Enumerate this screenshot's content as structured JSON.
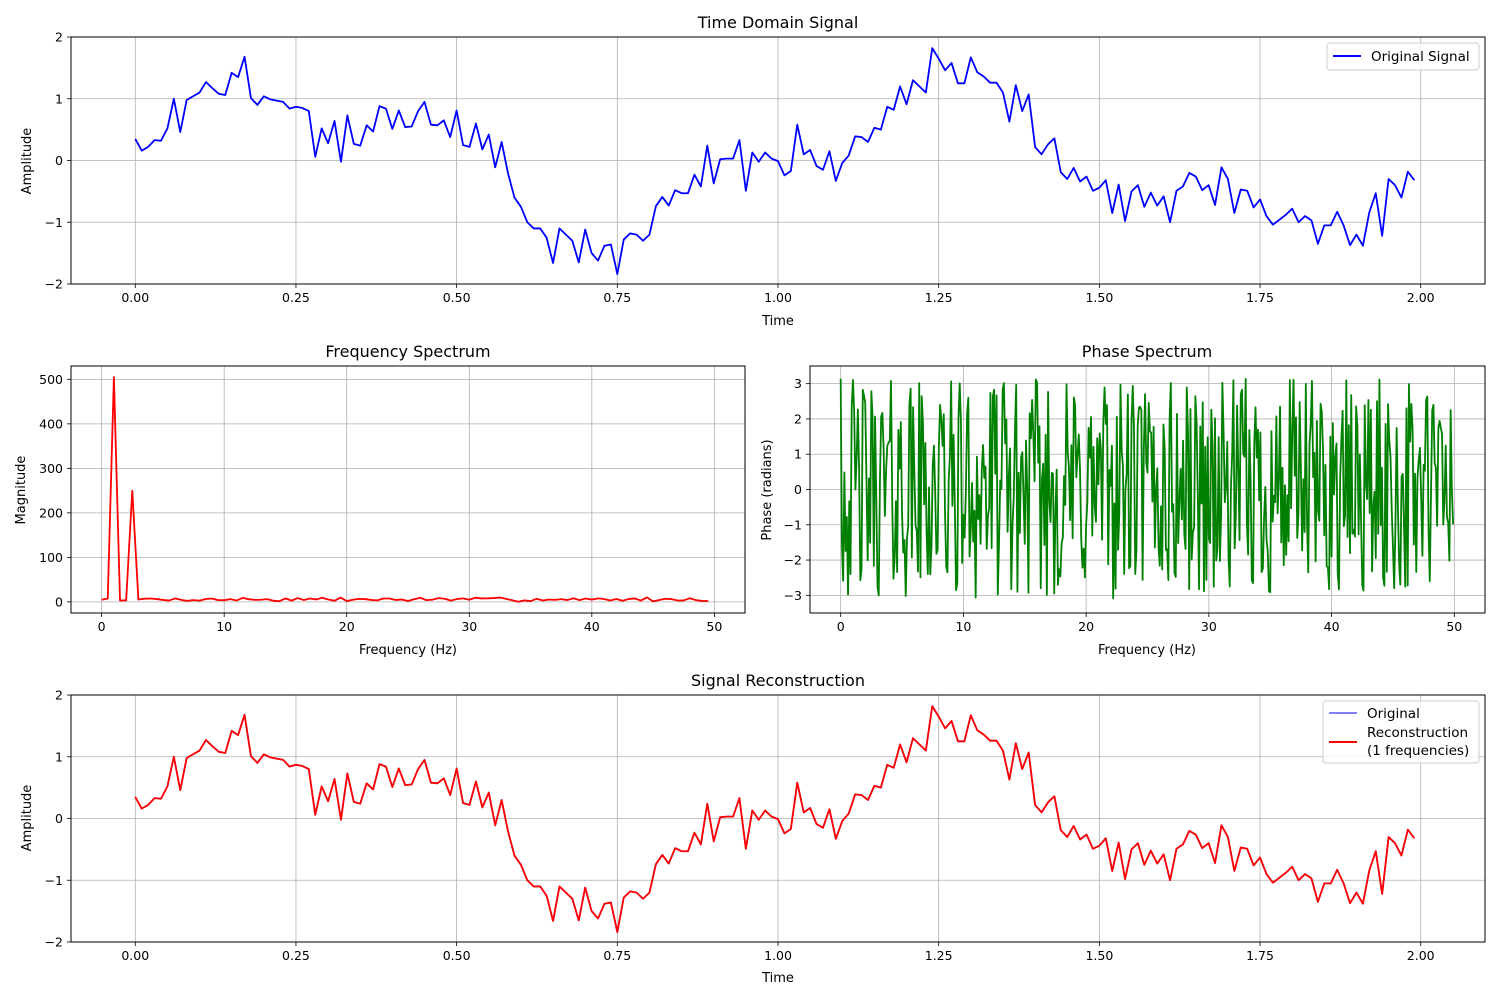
{
  "chart_data": [
    {
      "id": "time",
      "type": "line",
      "title": "Time Domain Signal",
      "xlabel": "Time",
      "ylabel": "Amplitude",
      "xlim": [
        -0.1,
        2.1
      ],
      "ylim": [
        -2.0,
        2.0
      ],
      "xticks": [
        0.0,
        0.25,
        0.5,
        0.75,
        1.0,
        1.25,
        1.5,
        1.75,
        2.0
      ],
      "xtick_labels": [
        "0.00",
        "0.25",
        "0.50",
        "0.75",
        "1.00",
        "1.25",
        "1.50",
        "1.75",
        "2.00"
      ],
      "yticks": [
        -2,
        -1,
        0,
        1,
        2
      ],
      "ytick_labels": [
        "−2",
        "−1",
        "0",
        "1",
        "2"
      ],
      "grid": true,
      "legend": {
        "position": "top-right",
        "entries": [
          {
            "label": "Original Signal",
            "color": "#0000ff"
          }
        ]
      },
      "series": [
        {
          "name": "Original Signal",
          "color": "#0000ff",
          "x_start": 0.0,
          "x_step": 0.01,
          "values": [
            0.35,
            0.16,
            0.22,
            0.33,
            0.32,
            0.52,
            1.0,
            0.46,
            0.98,
            1.04,
            1.1,
            1.27,
            1.17,
            1.08,
            1.06,
            1.42,
            1.35,
            1.68,
            1.01,
            0.9,
            1.04,
            0.99,
            0.97,
            0.95,
            0.84,
            0.87,
            0.85,
            0.8,
            0.06,
            0.52,
            0.28,
            0.64,
            -0.02,
            0.73,
            0.27,
            0.24,
            0.57,
            0.47,
            0.88,
            0.84,
            0.51,
            0.81,
            0.54,
            0.55,
            0.8,
            0.95,
            0.58,
            0.57,
            0.65,
            0.38,
            0.81,
            0.25,
            0.22,
            0.6,
            0.18,
            0.42,
            -0.11,
            0.3,
            -0.21,
            -0.6,
            -0.75,
            -1.0,
            -1.1,
            -1.1,
            -1.25,
            -1.66,
            -1.1,
            -1.2,
            -1.3,
            -1.65,
            -1.12,
            -1.5,
            -1.62,
            -1.38,
            -1.36,
            -1.84,
            -1.28,
            -1.18,
            -1.2,
            -1.3,
            -1.2,
            -0.74,
            -0.59,
            -0.73,
            -0.48,
            -0.53,
            -0.53,
            -0.23,
            -0.42,
            0.24,
            -0.37,
            0.02,
            0.03,
            0.03,
            0.33,
            -0.49,
            0.13,
            -0.02,
            0.13,
            0.03,
            -0.01,
            -0.24,
            -0.17,
            0.58,
            0.1,
            0.17,
            -0.09,
            -0.15,
            0.15,
            -0.33,
            -0.04,
            0.08,
            0.39,
            0.38,
            0.3,
            0.53,
            0.5,
            0.87,
            0.82,
            1.2,
            0.91,
            1.3,
            1.2,
            1.1,
            1.82,
            1.65,
            1.46,
            1.58,
            1.25,
            1.25,
            1.67,
            1.43,
            1.36,
            1.26,
            1.26,
            1.1,
            0.63,
            1.22,
            0.8,
            1.07,
            0.22,
            0.1,
            0.26,
            0.36,
            -0.19,
            -0.3,
            -0.12,
            -0.34,
            -0.26,
            -0.49,
            -0.44,
            -0.32,
            -0.85,
            -0.39,
            -0.98,
            -0.5,
            -0.4,
            -0.75,
            -0.52,
            -0.73,
            -0.58,
            -1.0,
            -0.49,
            -0.42,
            -0.2,
            -0.26,
            -0.48,
            -0.4,
            -0.72,
            -0.11,
            -0.3,
            -0.85,
            -0.47,
            -0.49,
            -0.76,
            -0.63,
            -0.9,
            -1.04,
            -0.96,
            -0.88,
            -0.78,
            -1.0,
            -0.9,
            -0.97,
            -1.35,
            -1.05,
            -1.05,
            -0.83,
            -1.05,
            -1.37,
            -1.2,
            -1.38,
            -0.84,
            -0.53,
            -1.22,
            -0.3,
            -0.4,
            -0.6,
            -0.18,
            -0.32
          ]
        }
      ]
    },
    {
      "id": "freq",
      "type": "line",
      "title": "Frequency Spectrum",
      "xlabel": "Frequency (Hz)",
      "ylabel": "Magnitude",
      "xlim": [
        -2.5,
        52.5
      ],
      "ylim": [
        -25,
        530
      ],
      "xticks": [
        0,
        10,
        20,
        30,
        40,
        50
      ],
      "xtick_labels": [
        "0",
        "10",
        "20",
        "30",
        "40",
        "50"
      ],
      "yticks": [
        0,
        100,
        200,
        300,
        400,
        500
      ],
      "ytick_labels": [
        "0",
        "100",
        "200",
        "300",
        "400",
        "500"
      ],
      "grid": true,
      "series": [
        {
          "name": "Magnitude",
          "color": "#ff0000",
          "x_start": 0.0,
          "x_step": 0.5,
          "noise_level": 5,
          "peaks": [
            {
              "x": 1.0,
              "y": 505
            },
            {
              "x": 2.5,
              "y": 250
            }
          ]
        }
      ]
    },
    {
      "id": "phase",
      "type": "line",
      "title": "Phase Spectrum",
      "xlabel": "Frequency (Hz)",
      "ylabel": "Phase (radians)",
      "xlim": [
        -2.5,
        52.5
      ],
      "ylim": [
        -3.5,
        3.5
      ],
      "xticks": [
        0,
        10,
        20,
        30,
        40,
        50
      ],
      "xtick_labels": [
        "0",
        "10",
        "20",
        "30",
        "40",
        "50"
      ],
      "yticks": [
        -3,
        -2,
        -1,
        0,
        1,
        2,
        3
      ],
      "ytick_labels": [
        "−3",
        "−2",
        "−1",
        "0",
        "1",
        "2",
        "3"
      ],
      "grid": true,
      "series": [
        {
          "name": "Phase",
          "color": "#008000",
          "x_start": 0.0,
          "x_step": 0.1,
          "range": [
            -3.14,
            3.14
          ],
          "first_value": 3.14
        }
      ]
    },
    {
      "id": "recon",
      "type": "line",
      "title": "Signal Reconstruction",
      "xlabel": "Time",
      "ylabel": "Amplitude",
      "xlim": [
        -0.1,
        2.1
      ],
      "ylim": [
        -2.0,
        2.0
      ],
      "xticks": [
        0.0,
        0.25,
        0.5,
        0.75,
        1.0,
        1.25,
        1.5,
        1.75,
        2.0
      ],
      "xtick_labels": [
        "0.00",
        "0.25",
        "0.50",
        "0.75",
        "1.00",
        "1.25",
        "1.50",
        "1.75",
        "2.00"
      ],
      "yticks": [
        -2,
        -1,
        0,
        1,
        2
      ],
      "ytick_labels": [
        "−2",
        "−1",
        "0",
        "1",
        "2"
      ],
      "grid": true,
      "legend": {
        "position": "top-right",
        "entries": [
          {
            "label": "Original",
            "color": "#0000ff"
          },
          {
            "label": "Reconstruction",
            "label2": "(1 frequencies)",
            "color": "#ff0000"
          }
        ]
      },
      "series": [
        {
          "name": "Original",
          "color": "#0000ff",
          "opacity": 0.5,
          "same_as": "time"
        },
        {
          "name": "Reconstruction (1 frequencies)",
          "color": "#ff0000",
          "same_as": "time"
        }
      ]
    }
  ]
}
